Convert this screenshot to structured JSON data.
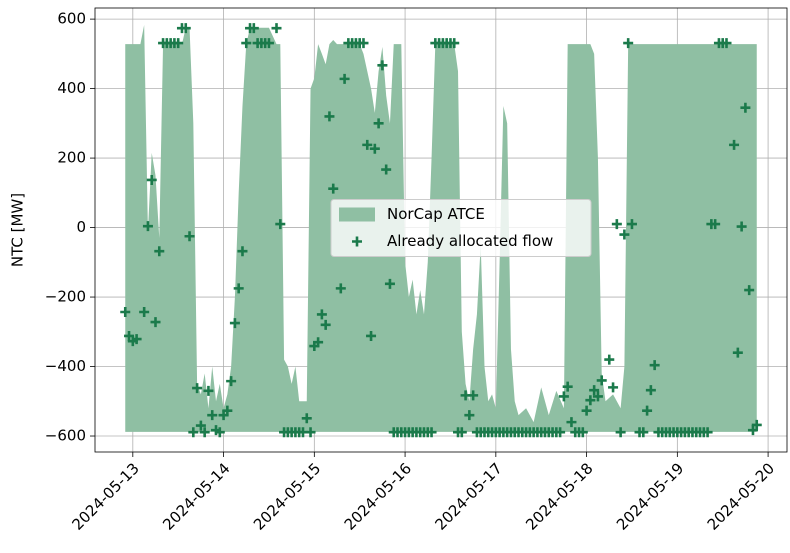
{
  "chart_data": {
    "type": "combo",
    "ylabel": "NTC [MW]",
    "xlim": [
      "2024-05-12T14:00",
      "2024-05-20T05:00"
    ],
    "xticks": [
      "2024-05-13",
      "2024-05-14",
      "2024-05-15",
      "2024-05-16",
      "2024-05-17",
      "2024-05-18",
      "2024-05-19",
      "2024-05-20"
    ],
    "ylim": [
      -646,
      632
    ],
    "yticks": [
      {
        "value": -600,
        "label": "−600"
      },
      {
        "value": -400,
        "label": "−400"
      },
      {
        "value": -200,
        "label": "−200"
      },
      0,
      200,
      400,
      600
    ],
    "grid": true,
    "legend": "center",
    "series": [
      {
        "name": "NorCap ATCE",
        "type": "area",
        "color": "#8fbfa3",
        "base": -588,
        "x": [
          "2024-05-12T22:00",
          "2024-05-13T02:00",
          "2024-05-13T03:00",
          "2024-05-13T04:00",
          "2024-05-13T05:00",
          "2024-05-13T06:00",
          "2024-05-13T07:00",
          "2024-05-13T08:00",
          "2024-05-13T13:00",
          "2024-05-13T14:00",
          "2024-05-13T15:00",
          "2024-05-13T16:00",
          "2024-05-13T17:00",
          "2024-05-13T18:00",
          "2024-05-13T19:00",
          "2024-05-13T20:00",
          "2024-05-13T21:00",
          "2024-05-13T22:00",
          "2024-05-13T23:00",
          "2024-05-14T00:00",
          "2024-05-14T01:00",
          "2024-05-14T02:00",
          "2024-05-14T03:00",
          "2024-05-14T04:00",
          "2024-05-14T05:00",
          "2024-05-14T06:00",
          "2024-05-14T07:00",
          "2024-05-14T12:00",
          "2024-05-14T14:00",
          "2024-05-14T15:00",
          "2024-05-14T16:00",
          "2024-05-14T17:00",
          "2024-05-14T18:00",
          "2024-05-14T19:00",
          "2024-05-14T20:00",
          "2024-05-14T21:00",
          "2024-05-14T22:00",
          "2024-05-14T23:00",
          "2024-05-15T00:00",
          "2024-05-15T01:00",
          "2024-05-15T02:00",
          "2024-05-15T03:00",
          "2024-05-15T04:00",
          "2024-05-15T05:00",
          "2024-05-15T06:00",
          "2024-05-15T12:00",
          "2024-05-15T13:00",
          "2024-05-15T15:00",
          "2024-05-15T16:00",
          "2024-05-15T17:00",
          "2024-05-15T18:00",
          "2024-05-15T19:00",
          "2024-05-15T20:00",
          "2024-05-15T21:00",
          "2024-05-15T23:00",
          "2024-05-16T00:00",
          "2024-05-16T01:00",
          "2024-05-16T02:00",
          "2024-05-16T03:00",
          "2024-05-16T04:00",
          "2024-05-16T05:00",
          "2024-05-16T06:00",
          "2024-05-16T07:00",
          "2024-05-16T08:00",
          "2024-05-16T13:00",
          "2024-05-16T14:00",
          "2024-05-16T15:00",
          "2024-05-16T16:00",
          "2024-05-16T17:00",
          "2024-05-16T18:00",
          "2024-05-16T19:00",
          "2024-05-16T20:00",
          "2024-05-16T21:00",
          "2024-05-16T22:00",
          "2024-05-16T23:00",
          "2024-05-17T00:00",
          "2024-05-17T01:00",
          "2024-05-17T02:00",
          "2024-05-17T03:00",
          "2024-05-17T04:00",
          "2024-05-17T05:00",
          "2024-05-17T06:00",
          "2024-05-17T08:00",
          "2024-05-17T10:00",
          "2024-05-17T12:00",
          "2024-05-17T14:00",
          "2024-05-17T16:00",
          "2024-05-17T18:00",
          "2024-05-17T19:00",
          "2024-05-18T01:00",
          "2024-05-18T02:00",
          "2024-05-18T03:00",
          "2024-05-18T04:00",
          "2024-05-18T05:00",
          "2024-05-18T07:00",
          "2024-05-18T09:00",
          "2024-05-18T10:00",
          "2024-05-18T11:00",
          "2024-05-19T21:00"
        ],
        "values": [
          528,
          528,
          583,
          -10,
          215,
          150,
          -30,
          528,
          528,
          575,
          575,
          300,
          -450,
          -480,
          -420,
          -520,
          -400,
          -500,
          -450,
          -520,
          -480,
          -400,
          -200,
          100,
          350,
          528,
          575,
          575,
          528,
          528,
          -380,
          -400,
          -450,
          -400,
          -500,
          -500,
          -500,
          400,
          430,
          528,
          500,
          470,
          528,
          540,
          528,
          528,
          500,
          400,
          330,
          450,
          520,
          380,
          300,
          528,
          528,
          -100,
          -200,
          -150,
          -250,
          -180,
          -250,
          -100,
          200,
          528,
          528,
          450,
          -300,
          -450,
          -500,
          -350,
          -250,
          -50,
          -400,
          -500,
          -480,
          -520,
          -100,
          350,
          300,
          -350,
          -500,
          -540,
          -520,
          -560,
          -460,
          -540,
          -470,
          -520,
          528,
          528,
          500,
          200,
          -420,
          -500,
          -480,
          -520,
          -400,
          528,
          528
        ]
      },
      {
        "name": "Already allocated flow",
        "type": "scatter",
        "color": "#1b7a4b",
        "x": [
          "2024-05-12T22:00",
          "2024-05-12T23:00",
          "2024-05-13T00:00",
          "2024-05-13T01:00",
          "2024-05-13T03:00",
          "2024-05-13T04:00",
          "2024-05-13T05:00",
          "2024-05-13T06:00",
          "2024-05-13T07:00",
          "2024-05-13T08:00",
          "2024-05-13T09:00",
          "2024-05-13T10:00",
          "2024-05-13T11:00",
          "2024-05-13T12:00",
          "2024-05-13T13:00",
          "2024-05-13T14:00",
          "2024-05-13T15:00",
          "2024-05-13T16:00",
          "2024-05-13T17:00",
          "2024-05-13T18:00",
          "2024-05-13T19:00",
          "2024-05-13T20:00",
          "2024-05-13T21:00",
          "2024-05-13T22:00",
          "2024-05-13T23:00",
          "2024-05-14T00:00",
          "2024-05-14T01:00",
          "2024-05-14T02:00",
          "2024-05-14T03:00",
          "2024-05-14T04:00",
          "2024-05-14T05:00",
          "2024-05-14T06:00",
          "2024-05-14T07:00",
          "2024-05-14T08:00",
          "2024-05-14T09:00",
          "2024-05-14T10:00",
          "2024-05-14T11:00",
          "2024-05-14T12:00",
          "2024-05-14T14:00",
          "2024-05-14T15:00",
          "2024-05-14T16:00",
          "2024-05-14T17:00",
          "2024-05-14T18:00",
          "2024-05-14T19:00",
          "2024-05-14T20:00",
          "2024-05-14T21:00",
          "2024-05-14T22:00",
          "2024-05-14T23:00",
          "2024-05-15T00:00",
          "2024-05-15T01:00",
          "2024-05-15T02:00",
          "2024-05-15T03:00",
          "2024-05-15T04:00",
          "2024-05-15T05:00",
          "2024-05-15T07:00",
          "2024-05-15T08:00",
          "2024-05-15T09:00",
          "2024-05-15T10:00",
          "2024-05-15T11:00",
          "2024-05-15T12:00",
          "2024-05-15T13:00",
          "2024-05-15T14:00",
          "2024-05-15T15:00",
          "2024-05-15T16:00",
          "2024-05-15T17:00",
          "2024-05-15T18:00",
          "2024-05-15T19:00",
          "2024-05-15T20:00",
          "2024-05-15T21:00",
          "2024-05-15T22:00",
          "2024-05-15T23:00",
          "2024-05-16T00:00",
          "2024-05-16T01:00",
          "2024-05-16T02:00",
          "2024-05-16T03:00",
          "2024-05-16T04:00",
          "2024-05-16T05:00",
          "2024-05-16T06:00",
          "2024-05-16T07:00",
          "2024-05-16T08:00",
          "2024-05-16T09:00",
          "2024-05-16T10:00",
          "2024-05-16T11:00",
          "2024-05-16T12:00",
          "2024-05-16T13:00",
          "2024-05-16T14:00",
          "2024-05-16T15:00",
          "2024-05-16T16:00",
          "2024-05-16T17:00",
          "2024-05-16T18:00",
          "2024-05-16T19:00",
          "2024-05-16T20:00",
          "2024-05-16T21:00",
          "2024-05-16T22:00",
          "2024-05-16T23:00",
          "2024-05-17T00:00",
          "2024-05-17T01:00",
          "2024-05-17T02:00",
          "2024-05-17T03:00",
          "2024-05-17T04:00",
          "2024-05-17T05:00",
          "2024-05-17T06:00",
          "2024-05-17T07:00",
          "2024-05-17T08:00",
          "2024-05-17T09:00",
          "2024-05-17T10:00",
          "2024-05-17T11:00",
          "2024-05-17T12:00",
          "2024-05-17T13:00",
          "2024-05-17T14:00",
          "2024-05-17T15:00",
          "2024-05-17T16:00",
          "2024-05-17T17:00",
          "2024-05-17T18:00",
          "2024-05-17T19:00",
          "2024-05-17T20:00",
          "2024-05-17T21:00",
          "2024-05-17T22:00",
          "2024-05-17T23:00",
          "2024-05-18T00:00",
          "2024-05-18T01:00",
          "2024-05-18T02:00",
          "2024-05-18T03:00",
          "2024-05-18T04:00",
          "2024-05-18T06:00",
          "2024-05-18T07:00",
          "2024-05-18T08:00",
          "2024-05-18T09:00",
          "2024-05-18T10:00",
          "2024-05-18T11:00",
          "2024-05-18T12:00",
          "2024-05-18T14:00",
          "2024-05-18T15:00",
          "2024-05-18T16:00",
          "2024-05-18T17:00",
          "2024-05-18T18:00",
          "2024-05-18T19:00",
          "2024-05-18T20:00",
          "2024-05-18T21:00",
          "2024-05-18T22:00",
          "2024-05-18T23:00",
          "2024-05-19T00:00",
          "2024-05-19T01:00",
          "2024-05-19T02:00",
          "2024-05-19T03:00",
          "2024-05-19T04:00",
          "2024-05-19T05:00",
          "2024-05-19T06:00",
          "2024-05-19T07:00",
          "2024-05-19T08:00",
          "2024-05-19T09:00",
          "2024-05-19T10:00",
          "2024-05-19T11:00",
          "2024-05-19T12:00",
          "2024-05-19T13:00",
          "2024-05-19T15:00",
          "2024-05-19T16:00",
          "2024-05-19T17:00",
          "2024-05-19T18:00",
          "2024-05-19T19:00",
          "2024-05-19T20:00",
          "2024-05-19T21:00"
        ],
        "values": [
          -243,
          -312,
          -327,
          -321,
          -243,
          4,
          137,
          -272,
          -68,
          531,
          531,
          531,
          531,
          531,
          574,
          574,
          -25,
          -589,
          -462,
          -570,
          -589,
          -470,
          -540,
          -583,
          -589,
          -540,
          -527,
          -442,
          -275,
          -175,
          -68,
          531,
          574,
          574,
          531,
          531,
          531,
          531,
          574,
          10,
          -589,
          -589,
          -589,
          -589,
          -589,
          -589,
          -549,
          -589,
          -341,
          -330,
          -250,
          -280,
          320,
          112,
          -175,
          428,
          531,
          531,
          531,
          531,
          531,
          238,
          -312,
          227,
          300,
          467,
          167,
          -162,
          -589,
          -589,
          -589,
          -589,
          -589,
          -589,
          -589,
          -589,
          -589,
          -589,
          -589,
          531,
          531,
          531,
          531,
          531,
          531,
          -589,
          -589,
          -483,
          -540,
          -483,
          -589,
          -589,
          -589,
          -589,
          -589,
          -589,
          -589,
          -589,
          -589,
          -589,
          -589,
          -589,
          -589,
          -589,
          -589,
          -589,
          -589,
          -589,
          -589,
          -589,
          -589,
          -589,
          -589,
          -486,
          -458,
          -560,
          -589,
          -589,
          -589,
          -527,
          -497,
          -468,
          -486,
          -440,
          -380,
          -460,
          10,
          -589,
          -20,
          531,
          10,
          -589,
          -589,
          -527,
          -468,
          -396,
          -589,
          -589,
          -589,
          -589,
          -589,
          -589,
          -589,
          -589,
          -589,
          -589,
          -589,
          -589,
          -589,
          -589,
          10,
          10,
          531,
          531,
          531,
          238,
          -360,
          3,
          345,
          -180,
          -583,
          -568
        ]
      }
    ]
  }
}
